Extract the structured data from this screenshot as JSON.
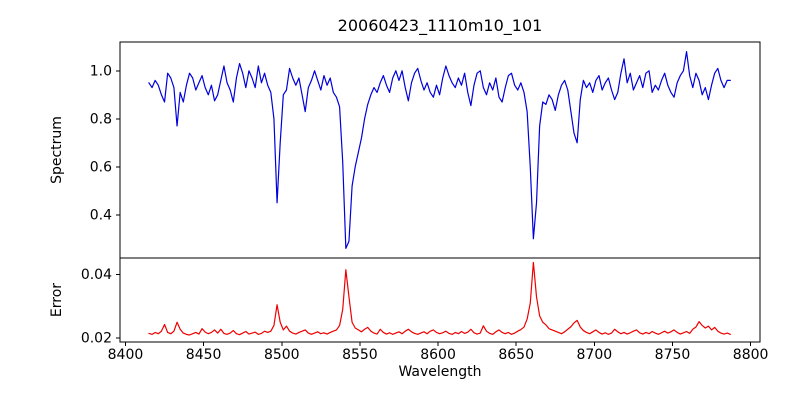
{
  "title": "20060423_1110m10_101",
  "colors": {
    "spectrum_line": "#0000dd",
    "error_line": "#ee0000",
    "axis": "#000000",
    "background": "#ffffff"
  },
  "x_axis": {
    "label": "Wavelength",
    "xlim": [
      8396.5,
      8806
    ],
    "ticks": [
      8400,
      8450,
      8500,
      8550,
      8600,
      8650,
      8700,
      8750,
      8800
    ],
    "tick_labels": [
      "8400",
      "8450",
      "8500",
      "8550",
      "8600",
      "8650",
      "8700",
      "8750",
      "8800"
    ]
  },
  "chart_data": [
    {
      "type": "line",
      "name": "Spectrum",
      "panel": "top",
      "color": "#0000dd",
      "ylabel": "Spectrum",
      "ylim": [
        0.22,
        1.12
      ],
      "yticks": [
        0.4,
        0.6,
        0.8,
        1.0
      ],
      "ytick_labels": [
        "0.4",
        "0.6",
        "0.8",
        "1.0"
      ],
      "grid": false,
      "legend": "none",
      "absorption_features": [
        {
          "wavelength": 8425,
          "depth": 0.87
        },
        {
          "wavelength": 8433,
          "depth": 0.77
        },
        {
          "wavelength": 8469,
          "depth": 0.87
        },
        {
          "wavelength": 8497,
          "depth": 0.45
        },
        {
          "wavelength": 8541,
          "depth": 0.26
        },
        {
          "wavelength": 8661,
          "depth": 0.3
        },
        {
          "wavelength": 8689,
          "depth": 0.7
        }
      ],
      "x_start": 8415,
      "x_step": 2,
      "n_points": 187,
      "values": [
        0.95,
        0.93,
        0.96,
        0.94,
        0.9,
        0.87,
        0.99,
        0.97,
        0.93,
        0.77,
        0.91,
        0.87,
        0.94,
        0.99,
        0.97,
        0.92,
        0.95,
        0.98,
        0.93,
        0.9,
        0.94,
        0.875,
        0.9,
        0.96,
        1.02,
        0.95,
        0.92,
        0.87,
        0.97,
        1.03,
        0.99,
        0.93,
        1.0,
        0.97,
        0.93,
        1.02,
        0.95,
        0.99,
        0.94,
        0.91,
        0.8,
        0.45,
        0.7,
        0.9,
        0.92,
        1.01,
        0.97,
        0.94,
        0.97,
        0.9,
        0.83,
        0.93,
        0.96,
        1.0,
        0.96,
        0.92,
        0.98,
        0.94,
        0.97,
        0.91,
        0.89,
        0.85,
        0.62,
        0.26,
        0.29,
        0.52,
        0.6,
        0.66,
        0.72,
        0.8,
        0.86,
        0.9,
        0.93,
        0.91,
        0.95,
        0.98,
        0.94,
        0.91,
        0.97,
        1.0,
        0.96,
        1.0,
        0.93,
        0.875,
        0.95,
        0.99,
        1.01,
        0.96,
        0.92,
        0.95,
        0.91,
        0.89,
        0.94,
        0.9,
        0.97,
        1.02,
        0.98,
        0.95,
        0.93,
        0.97,
        0.94,
        0.99,
        0.91,
        0.855,
        0.94,
        0.99,
        1.0,
        0.93,
        0.9,
        0.95,
        0.92,
        0.97,
        0.89,
        0.87,
        0.93,
        0.98,
        0.99,
        0.94,
        0.92,
        0.95,
        0.91,
        0.83,
        0.6,
        0.3,
        0.45,
        0.77,
        0.87,
        0.86,
        0.9,
        0.88,
        0.835,
        0.9,
        0.94,
        0.96,
        0.92,
        0.83,
        0.74,
        0.7,
        0.88,
        0.96,
        0.93,
        0.95,
        0.91,
        0.96,
        0.98,
        0.92,
        0.95,
        0.97,
        0.92,
        0.88,
        0.91,
        0.99,
        1.05,
        0.95,
        0.99,
        0.92,
        0.95,
        0.98,
        0.93,
        0.99,
        1.0,
        0.91,
        0.94,
        0.92,
        0.96,
        0.99,
        0.94,
        0.91,
        0.89,
        0.95,
        0.98,
        1.0,
        1.08,
        0.98,
        0.93,
        0.99,
        0.96,
        0.9,
        0.93,
        0.88,
        0.94,
        0.99,
        1.01,
        0.96,
        0.93,
        0.96,
        0.96
      ]
    },
    {
      "type": "line",
      "name": "Error",
      "panel": "bottom",
      "color": "#ee0000",
      "ylabel": "Error",
      "ylim": [
        0.0188,
        0.0452
      ],
      "yticks": [
        0.02,
        0.04
      ],
      "ytick_labels": [
        "0.02",
        "0.04"
      ],
      "grid": false,
      "legend": "none",
      "peak_features": [
        {
          "wavelength": 8497,
          "height": 0.0305
        },
        {
          "wavelength": 8541,
          "height": 0.0415
        },
        {
          "wavelength": 8661,
          "height": 0.0438
        },
        {
          "wavelength": 8689,
          "height": 0.0256
        }
      ],
      "x_start": 8415,
      "x_step": 2,
      "n_points": 187,
      "values": [
        0.0215,
        0.0212,
        0.0218,
        0.0214,
        0.0222,
        0.0243,
        0.0218,
        0.0214,
        0.0222,
        0.025,
        0.0228,
        0.0216,
        0.0212,
        0.021,
        0.0214,
        0.0218,
        0.0213,
        0.023,
        0.0219,
        0.0214,
        0.0218,
        0.0226,
        0.0216,
        0.0228,
        0.0215,
        0.0212,
        0.0216,
        0.0224,
        0.0214,
        0.0211,
        0.0216,
        0.0221,
        0.0213,
        0.0216,
        0.0219,
        0.0212,
        0.0215,
        0.0222,
        0.0218,
        0.0222,
        0.024,
        0.0305,
        0.025,
        0.0226,
        0.0238,
        0.0222,
        0.0216,
        0.0213,
        0.0218,
        0.0222,
        0.0226,
        0.0216,
        0.0212,
        0.0216,
        0.022,
        0.0214,
        0.0217,
        0.0213,
        0.0218,
        0.0222,
        0.0226,
        0.024,
        0.029,
        0.0415,
        0.033,
        0.025,
        0.0232,
        0.0226,
        0.022,
        0.0228,
        0.0234,
        0.0222,
        0.0216,
        0.0213,
        0.0228,
        0.0218,
        0.0213,
        0.0217,
        0.0212,
        0.0216,
        0.022,
        0.0214,
        0.0222,
        0.0228,
        0.022,
        0.0215,
        0.0212,
        0.0216,
        0.022,
        0.0214,
        0.0222,
        0.0226,
        0.0218,
        0.0214,
        0.0217,
        0.0222,
        0.0215,
        0.0212,
        0.0218,
        0.0214,
        0.0221,
        0.0215,
        0.0219,
        0.0228,
        0.0217,
        0.0213,
        0.0216,
        0.0239,
        0.0222,
        0.0215,
        0.0212,
        0.022,
        0.0226,
        0.0218,
        0.0214,
        0.0218,
        0.0212,
        0.0216,
        0.0222,
        0.0227,
        0.0235,
        0.026,
        0.031,
        0.0438,
        0.033,
        0.027,
        0.025,
        0.0242,
        0.023,
        0.0226,
        0.0222,
        0.0218,
        0.0214,
        0.022,
        0.0228,
        0.0236,
        0.0248,
        0.0256,
        0.0235,
        0.0224,
        0.0218,
        0.0214,
        0.022,
        0.0226,
        0.0218,
        0.0213,
        0.0217,
        0.0212,
        0.0216,
        0.0228,
        0.022,
        0.0214,
        0.0218,
        0.0213,
        0.0217,
        0.0222,
        0.0226,
        0.0217,
        0.0213,
        0.0218,
        0.0214,
        0.0221,
        0.0216,
        0.0212,
        0.0217,
        0.0222,
        0.0216,
        0.022,
        0.0226,
        0.0218,
        0.0213,
        0.0217,
        0.0221,
        0.0215,
        0.0228,
        0.0235,
        0.0252,
        0.024,
        0.0232,
        0.0238,
        0.0226,
        0.0234,
        0.0222,
        0.0216,
        0.0213,
        0.0216,
        0.0212
      ]
    }
  ]
}
